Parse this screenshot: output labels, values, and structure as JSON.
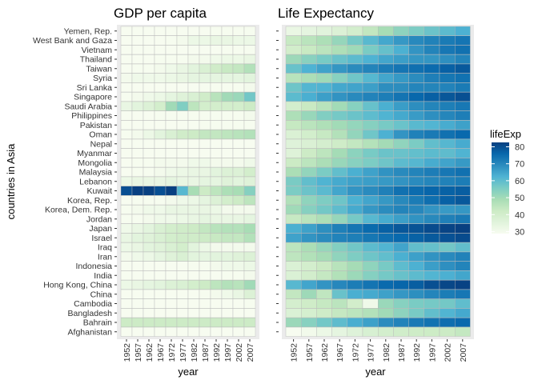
{
  "chart_data": [
    {
      "type": "heatmap",
      "title": "GDP per capita",
      "xlabel": "year",
      "ylabel": "countries in Asia",
      "x": [
        "1952",
        "1957",
        "1962",
        "1967",
        "1972",
        "1977",
        "1982",
        "1987",
        "1992",
        "1997",
        "2002",
        "2007"
      ],
      "y": [
        "Afghanistan",
        "Bahrain",
        "Bangladesh",
        "Cambodia",
        "China",
        "Hong Kong, China",
        "India",
        "Indonesia",
        "Iran",
        "Iraq",
        "Israel",
        "Japan",
        "Jordan",
        "Korea, Dem. Rep.",
        "Korea, Rep.",
        "Kuwait",
        "Lebanon",
        "Malaysia",
        "Mongolia",
        "Myanmar",
        "Nepal",
        "Oman",
        "Pakistan",
        "Philippines",
        "Saudi Arabia",
        "Singapore",
        "Sri Lanka",
        "Syria",
        "Taiwan",
        "Thailand",
        "Vietnam",
        "West Bank and Gaza",
        "Yemen, Rep."
      ],
      "values": [
        [
          28,
          28,
          28,
          28,
          28,
          28,
          28,
          28,
          28,
          28,
          28,
          28
        ],
        [
          42,
          42,
          42,
          42,
          42,
          42,
          42,
          42,
          42,
          42,
          42,
          42
        ],
        [
          28,
          28,
          28,
          28,
          28,
          28,
          28,
          28,
          28,
          28,
          28,
          28
        ],
        [
          28,
          28,
          28,
          28,
          28,
          28,
          28,
          28,
          28,
          28,
          28,
          29
        ],
        [
          28,
          28,
          28,
          28,
          28,
          28,
          28,
          29,
          30,
          31,
          33,
          37
        ],
        [
          32,
          33,
          34,
          35,
          37,
          38,
          40,
          42,
          45,
          47,
          46,
          50
        ],
        [
          28,
          28,
          28,
          28,
          28,
          28,
          28,
          28,
          28,
          29,
          29,
          30
        ],
        [
          28,
          28,
          28,
          28,
          28,
          28,
          29,
          29,
          30,
          31,
          31,
          32
        ],
        [
          30,
          31,
          32,
          34,
          36,
          38,
          35,
          34,
          35,
          35,
          36,
          37
        ],
        [
          32,
          33,
          35,
          36,
          38,
          40,
          35,
          32,
          30,
          30,
          30,
          30
        ],
        [
          33,
          35,
          36,
          38,
          40,
          41,
          41,
          42,
          43,
          44,
          44,
          47
        ],
        [
          31,
          33,
          35,
          38,
          40,
          41,
          42,
          44,
          46,
          47,
          47,
          49
        ],
        [
          29,
          29,
          30,
          31,
          31,
          32,
          33,
          34,
          33,
          33,
          33,
          34
        ],
        [
          29,
          30,
          31,
          31,
          33,
          33,
          33,
          33,
          32,
          30,
          30,
          30
        ],
        [
          28,
          29,
          29,
          29,
          30,
          31,
          32,
          34,
          37,
          40,
          42,
          45
        ],
        [
          80,
          83,
          84,
          80,
          86,
          61,
          49,
          42,
          45,
          48,
          49,
          54
        ],
        [
          32,
          33,
          33,
          33,
          34,
          33,
          33,
          34,
          34,
          36,
          35,
          36
        ],
        [
          28,
          29,
          29,
          30,
          31,
          32,
          33,
          33,
          35,
          37,
          37,
          40
        ],
        [
          28,
          29,
          29,
          30,
          30,
          30,
          31,
          31,
          30,
          30,
          30,
          31
        ],
        [
          28,
          28,
          28,
          28,
          28,
          28,
          28,
          28,
          28,
          28,
          28,
          28
        ],
        [
          28,
          28,
          28,
          28,
          28,
          28,
          28,
          28,
          28,
          28,
          28,
          28
        ],
        [
          29,
          30,
          32,
          35,
          38,
          41,
          42,
          44,
          44,
          45,
          46,
          47
        ],
        [
          28,
          28,
          28,
          28,
          28,
          28,
          28,
          29,
          29,
          29,
          29,
          29
        ],
        [
          28,
          28,
          28,
          29,
          29,
          29,
          29,
          29,
          29,
          29,
          29,
          30
        ],
        [
          33,
          35,
          37,
          40,
          50,
          55,
          45,
          40,
          40,
          40,
          40,
          42
        ],
        [
          29,
          30,
          31,
          32,
          34,
          36,
          38,
          41,
          46,
          50,
          51,
          57
        ],
        [
          28,
          28,
          28,
          28,
          28,
          28,
          28,
          29,
          29,
          29,
          29,
          30
        ],
        [
          30,
          31,
          31,
          31,
          32,
          33,
          34,
          34,
          34,
          34,
          34,
          35
        ],
        [
          28,
          29,
          29,
          30,
          31,
          33,
          35,
          38,
          41,
          43,
          44,
          47
        ],
        [
          28,
          28,
          28,
          29,
          29,
          29,
          30,
          30,
          31,
          32,
          32,
          33
        ],
        [
          28,
          28,
          28,
          28,
          28,
          28,
          28,
          28,
          28,
          29,
          29,
          29
        ],
        [
          28,
          28,
          28,
          28,
          29,
          30,
          32,
          32,
          33,
          33,
          32,
          32
        ],
        [
          28,
          28,
          28,
          28,
          28,
          28,
          28,
          28,
          29,
          29,
          29,
          29
        ]
      ]
    },
    {
      "type": "heatmap",
      "title": "Life Expectancy",
      "xlabel": "year",
      "x": [
        "1952",
        "1957",
        "1962",
        "1967",
        "1972",
        "1977",
        "1982",
        "1987",
        "1992",
        "1997",
        "2002",
        "2007"
      ],
      "y": [
        "Afghanistan",
        "Bahrain",
        "Bangladesh",
        "Cambodia",
        "China",
        "Hong Kong, China",
        "India",
        "Indonesia",
        "Iran",
        "Iraq",
        "Israel",
        "Japan",
        "Jordan",
        "Korea, Dem. Rep.",
        "Korea, Rep.",
        "Kuwait",
        "Lebanon",
        "Malaysia",
        "Mongolia",
        "Myanmar",
        "Nepal",
        "Oman",
        "Pakistan",
        "Philippines",
        "Saudi Arabia",
        "Singapore",
        "Sri Lanka",
        "Syria",
        "Taiwan",
        "Thailand",
        "Vietnam",
        "West Bank and Gaza",
        "Yemen, Rep."
      ],
      "values": [
        [
          28.8,
          30.3,
          32.0,
          34.0,
          36.1,
          38.4,
          39.9,
          40.8,
          41.7,
          41.8,
          42.1,
          43.8
        ],
        [
          50.9,
          53.8,
          56.9,
          59.9,
          63.3,
          65.6,
          69.1,
          70.8,
          72.6,
          73.9,
          74.8,
          75.6
        ],
        [
          37.5,
          39.3,
          41.2,
          43.5,
          45.3,
          46.9,
          50.0,
          52.8,
          56.0,
          59.4,
          62.0,
          64.1
        ],
        [
          39.4,
          41.4,
          43.4,
          45.4,
          40.3,
          31.2,
          51.0,
          53.9,
          55.8,
          56.5,
          56.8,
          59.7
        ],
        [
          44.0,
          50.5,
          44.5,
          58.4,
          63.1,
          64.0,
          65.5,
          67.3,
          68.7,
          70.4,
          72.0,
          73.0
        ],
        [
          61.0,
          64.8,
          67.7,
          70.0,
          72.0,
          73.6,
          75.5,
          76.2,
          77.6,
          80.0,
          81.5,
          82.2
        ],
        [
          37.4,
          40.2,
          43.6,
          47.2,
          50.7,
          54.2,
          56.6,
          58.6,
          60.2,
          61.8,
          62.9,
          64.7
        ],
        [
          37.5,
          39.9,
          42.5,
          46.0,
          49.2,
          52.7,
          56.2,
          60.1,
          62.7,
          66.0,
          68.6,
          70.7
        ],
        [
          44.9,
          47.2,
          49.3,
          52.5,
          55.2,
          57.7,
          59.6,
          63.0,
          65.7,
          68.0,
          69.5,
          71.0
        ],
        [
          45.3,
          48.4,
          51.5,
          54.5,
          57.0,
          60.4,
          62.0,
          65.0,
          59.5,
          58.8,
          57.0,
          59.5
        ],
        [
          65.4,
          67.8,
          69.4,
          70.8,
          71.6,
          73.1,
          74.5,
          75.6,
          76.9,
          78.3,
          79.7,
          80.7
        ],
        [
          63.0,
          65.5,
          68.7,
          71.4,
          73.4,
          75.4,
          77.1,
          78.7,
          79.4,
          80.7,
          82.0,
          82.6
        ],
        [
          43.2,
          45.7,
          48.1,
          51.6,
          56.5,
          61.1,
          63.7,
          65.9,
          68.0,
          69.8,
          71.3,
          72.5
        ],
        [
          50.1,
          54.1,
          56.7,
          59.9,
          64.0,
          67.2,
          69.1,
          70.6,
          70.0,
          67.7,
          66.7,
          67.3
        ],
        [
          47.5,
          52.7,
          55.3,
          57.7,
          62.6,
          64.8,
          67.1,
          69.8,
          72.2,
          74.6,
          77.0,
          78.6
        ],
        [
          55.6,
          58.0,
          60.5,
          64.6,
          67.7,
          69.3,
          71.3,
          74.2,
          75.2,
          76.2,
          76.9,
          77.6
        ],
        [
          55.9,
          59.5,
          62.1,
          63.9,
          65.4,
          66.1,
          66.9,
          67.9,
          69.3,
          70.3,
          71.0,
          72.0
        ],
        [
          48.5,
          52.1,
          55.7,
          59.4,
          63.0,
          65.3,
          68.0,
          69.5,
          70.7,
          71.9,
          73.0,
          74.2
        ],
        [
          42.2,
          45.2,
          48.3,
          51.3,
          53.8,
          55.5,
          57.5,
          60.2,
          61.3,
          63.6,
          65.0,
          66.8
        ],
        [
          36.3,
          41.9,
          45.1,
          49.4,
          53.1,
          56.1,
          58.1,
          58.3,
          59.3,
          60.3,
          59.9,
          62.1
        ],
        [
          36.2,
          37.7,
          39.4,
          41.2,
          43.9,
          46.7,
          49.6,
          52.5,
          55.7,
          59.4,
          61.3,
          63.8
        ],
        [
          37.6,
          40.1,
          43.2,
          46.9,
          52.1,
          57.4,
          62.7,
          67.7,
          71.2,
          72.5,
          74.2,
          75.6
        ],
        [
          43.4,
          45.6,
          47.7,
          49.8,
          51.9,
          54.0,
          56.2,
          58.2,
          60.8,
          61.8,
          63.6,
          65.5
        ],
        [
          47.8,
          51.3,
          54.8,
          56.4,
          58.1,
          60.1,
          62.1,
          64.2,
          66.5,
          68.6,
          70.3,
          71.7
        ],
        [
          39.9,
          42.9,
          45.9,
          49.9,
          53.9,
          58.7,
          63.0,
          66.3,
          68.8,
          70.5,
          71.6,
          72.8
        ],
        [
          60.4,
          63.2,
          65.8,
          67.9,
          69.5,
          70.8,
          71.8,
          73.6,
          75.8,
          77.2,
          78.8,
          80.0
        ],
        [
          57.6,
          61.5,
          62.2,
          64.3,
          65.0,
          65.9,
          68.8,
          69.0,
          70.4,
          70.5,
          70.8,
          72.4
        ],
        [
          45.9,
          48.3,
          50.3,
          53.7,
          57.3,
          61.2,
          64.6,
          66.97,
          69.2,
          71.5,
          73.1,
          74.1
        ],
        [
          58.5,
          62.4,
          65.2,
          67.5,
          69.4,
          70.6,
          72.2,
          73.4,
          74.3,
          75.3,
          76.99,
          78.4
        ],
        [
          50.8,
          53.6,
          56.1,
          58.3,
          60.4,
          62.5,
          64.6,
          66.1,
          67.3,
          67.5,
          68.6,
          70.6
        ],
        [
          40.4,
          42.9,
          45.4,
          47.8,
          50.3,
          55.8,
          58.8,
          62.8,
          67.7,
          70.7,
          73.0,
          74.2
        ],
        [
          43.2,
          45.7,
          48.1,
          51.6,
          56.5,
          60.8,
          64.4,
          67.0,
          69.7,
          71.1,
          72.4,
          73.4
        ],
        [
          32.5,
          33.97,
          35.2,
          36.98,
          39.8,
          44.2,
          49.1,
          52.9,
          55.6,
          58.0,
          60.3,
          62.7
        ]
      ]
    }
  ],
  "legend": {
    "title": "lifeExp",
    "ticks": [
      "30",
      "40",
      "50",
      "60",
      "70",
      "80"
    ],
    "range": [
      28.8,
      82.6
    ],
    "colors": [
      "#f7fcf0",
      "#e0f3db",
      "#ccebc5",
      "#a8ddb5",
      "#7bccc4",
      "#4eb3d3",
      "#2b8cbe",
      "#0868ac",
      "#084081"
    ]
  }
}
